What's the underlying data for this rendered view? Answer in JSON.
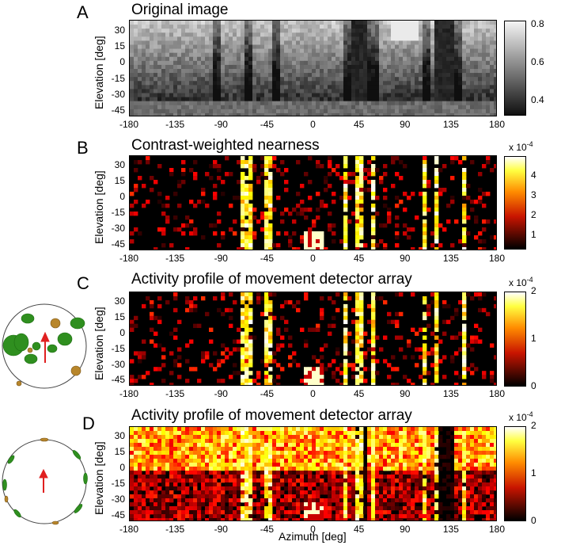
{
  "panels": [
    {
      "letter": "A",
      "title": "Original image",
      "colormap": "gray",
      "colorbar": {
        "ticks": [
          "0.8",
          "0.6",
          "0.4"
        ],
        "tick_values": [
          0.8,
          0.6,
          0.4
        ],
        "range": [
          0.32,
          0.82
        ],
        "multiplier": null
      }
    },
    {
      "letter": "B",
      "title": "Contrast-weighted nearness",
      "colormap": "hot",
      "colorbar": {
        "ticks": [
          "4",
          "3",
          "2",
          "1"
        ],
        "tick_values": [
          4,
          3,
          2,
          1
        ],
        "range": [
          0.3,
          5.0
        ],
        "multiplier": {
          "base": "x 10",
          "exp": "-4"
        }
      }
    },
    {
      "letter": "C",
      "title": "Activity profile of movement detector array",
      "colormap": "hot",
      "colorbar": {
        "ticks": [
          "2",
          "1",
          "0"
        ],
        "tick_values": [
          2,
          1,
          0
        ],
        "range": [
          0,
          2
        ],
        "multiplier": {
          "base": "x 10",
          "exp": "-4"
        }
      },
      "inset": "forest-scene-with-trees"
    },
    {
      "letter": "D",
      "title": "Activity profile of movement detector array",
      "colormap": "hot",
      "colorbar": {
        "ticks": [
          "2",
          "1",
          "0"
        ],
        "tick_values": [
          2,
          1,
          0
        ],
        "range": [
          0,
          2
        ],
        "multiplier": {
          "base": "x 10",
          "exp": "-4"
        }
      },
      "inset": "scene-with-objects-at-border"
    }
  ],
  "axes": {
    "ylabel": "Elevation [deg]",
    "xlabel": "Azimuth [deg]",
    "yticks": [
      "30",
      "15",
      "0",
      "-15",
      "-30",
      "-45"
    ],
    "ytick_values": [
      30,
      15,
      0,
      -15,
      -30,
      -45
    ],
    "xticks": [
      "-180",
      "-135",
      "-90",
      "-45",
      "0",
      "45",
      "90",
      "135",
      "180"
    ],
    "xtick_values": [
      -180,
      -135,
      -90,
      -45,
      0,
      45,
      90,
      135,
      180
    ]
  },
  "chart_data": [
    {
      "type": "heatmap",
      "title": "Original image",
      "xlabel": "",
      "ylabel": "Elevation [deg]",
      "xlim": [
        -180,
        180
      ],
      "ylim": [
        -50,
        40
      ],
      "colorbar_range": [
        0.32,
        0.82
      ],
      "colormap": "gray"
    },
    {
      "type": "heatmap",
      "title": "Contrast-weighted nearness",
      "xlabel": "",
      "ylabel": "Elevation [deg]",
      "xlim": [
        -180,
        180
      ],
      "ylim": [
        -50,
        40
      ],
      "colorbar_range": [
        3e-05,
        0.0005
      ],
      "colormap": "hot"
    },
    {
      "type": "heatmap",
      "title": "Activity profile of movement detector array",
      "xlabel": "",
      "ylabel": "Elevation [deg]",
      "xlim": [
        -180,
        180
      ],
      "ylim": [
        -50,
        40
      ],
      "colorbar_range": [
        0,
        0.0002
      ],
      "colormap": "hot"
    },
    {
      "type": "heatmap",
      "title": "Activity profile of movement detector array",
      "xlabel": "Azimuth [deg]",
      "ylabel": "Elevation [deg]",
      "xlim": [
        -180,
        180
      ],
      "ylim": [
        -50,
        40
      ],
      "colorbar_range": [
        0,
        0.0002
      ],
      "colormap": "hot"
    }
  ],
  "colors": {
    "gray_dark": "#111111",
    "gray_light": "#f2f2f2",
    "hot_black": "#000000",
    "hot_red": "#c81400",
    "hot_orange": "#ff8c00",
    "hot_yellow": "#ffff40",
    "hot_white": "#ffffff",
    "tree_green": "#2f8f1f",
    "object_ochre": "#b8862b",
    "arrow_red": "#e02020"
  }
}
